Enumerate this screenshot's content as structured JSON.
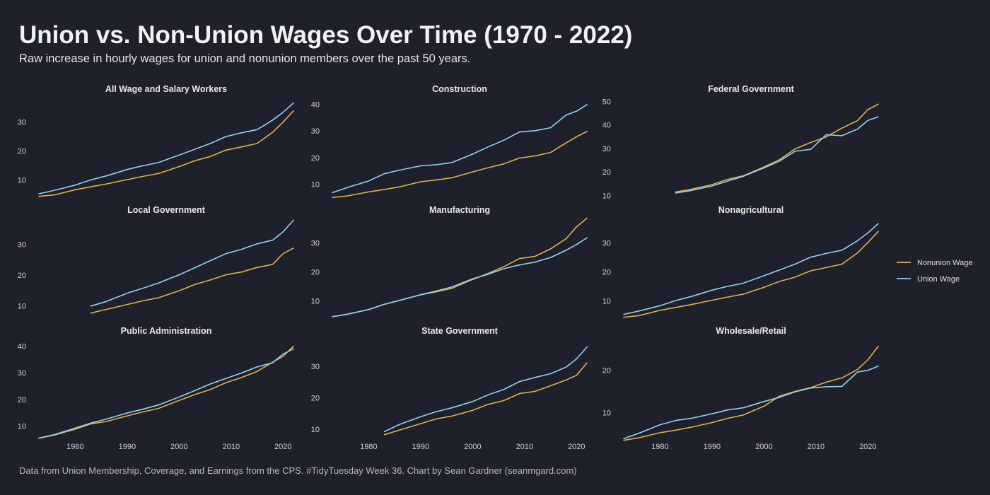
{
  "title": "Union vs. Non-Union Wages Over Time (1970 - 2022)",
  "subtitle": "Raw increase in hourly wages for union and nonunion members over the past 50 years.",
  "caption": "Data from Union Membership, Coverage, and Earnings from the CPS. #TidyTuesday Week 36. Chart by Sean Gardner (seanmgard.com)",
  "colors": {
    "background": "#1e202b",
    "nonunion": "#e3b04a",
    "union": "#8fd3ee"
  },
  "legend": {
    "placement": "right",
    "items": [
      {
        "label": "Nonunion Wage",
        "color": "#e3b04a"
      },
      {
        "label": "Union Wage",
        "color": "#8fd3ee"
      }
    ]
  },
  "chart_data": {
    "type": "line",
    "facet_layout": "3x3",
    "x_range": [
      1973,
      2022
    ],
    "x_ticks": [
      1980,
      1990,
      2000,
      2010,
      2020
    ],
    "panels": [
      {
        "title": "All Wage and Salary Workers",
        "y_ticks": [
          10,
          20,
          30
        ],
        "ylim": [
          3,
          38
        ],
        "series": [
          {
            "name": "Nonunion Wage",
            "x": [
              1973,
              1976,
              1980,
              1983,
              1986,
              1990,
              1993,
              1996,
              2000,
              2003,
              2006,
              2009,
              2012,
              2015,
              2018,
              2020,
              2022
            ],
            "y": [
              4.3,
              4.8,
              6.6,
              7.6,
              8.6,
              10.1,
              11.2,
              12.2,
              14.6,
              16.6,
              18.1,
              20.3,
              21.4,
              22.6,
              26.5,
              30.0,
              33.9
            ]
          },
          {
            "name": "Union Wage",
            "x": [
              1973,
              1976,
              1980,
              1983,
              1986,
              1990,
              1993,
              1996,
              2000,
              2003,
              2006,
              2009,
              2012,
              2015,
              2018,
              2020,
              2022
            ],
            "y": [
              5.2,
              6.4,
              8.2,
              10.0,
              11.4,
              13.6,
              14.9,
              16.0,
              18.6,
              20.6,
              22.6,
              25.0,
              26.3,
              27.4,
              30.7,
              33.4,
              36.6
            ]
          }
        ]
      },
      {
        "title": "Construction",
        "y_ticks": [
          10,
          20,
          30,
          40
        ],
        "ylim": [
          4,
          42
        ],
        "series": [
          {
            "name": "Nonunion Wage",
            "x": [
              1973,
              1976,
              1980,
              1983,
              1986,
              1990,
              1993,
              1996,
              2000,
              2003,
              2006,
              2009,
              2012,
              2015,
              2018,
              2020,
              2022
            ],
            "y": [
              5.0,
              5.6,
              7.1,
              8.0,
              9.0,
              10.9,
              11.6,
              12.4,
              14.6,
              16.2,
              17.6,
              19.8,
              20.6,
              21.9,
              25.5,
              27.8,
              29.8
            ]
          },
          {
            "name": "Union Wage",
            "x": [
              1973,
              1976,
              1980,
              1983,
              1986,
              1990,
              1993,
              1996,
              2000,
              2003,
              2006,
              2009,
              2012,
              2015,
              2018,
              2020,
              2022
            ],
            "y": [
              6.8,
              8.8,
              11.2,
              13.9,
              15.3,
              16.9,
              17.3,
              18.1,
              21.3,
              24.0,
              26.5,
              29.6,
              30.1,
              31.2,
              36.0,
              37.4,
              39.9
            ]
          }
        ]
      },
      {
        "title": "Federal Government",
        "y_ticks": [
          10,
          20,
          30,
          40,
          50
        ],
        "ylim": [
          8,
          51
        ],
        "series": [
          {
            "name": "Nonunion Wage",
            "x": [
              1983,
              1986,
              1990,
              1993,
              1996,
              2000,
              2003,
              2006,
              2009,
              2012,
              2015,
              2018,
              2020,
              2022
            ],
            "y": [
              11.5,
              12.6,
              14.6,
              16.8,
              18.3,
              22.1,
              25.2,
              29.8,
              32.5,
              34.9,
              38.6,
              41.8,
              46.5,
              48.8
            ]
          },
          {
            "name": "Union Wage",
            "x": [
              1983,
              1986,
              1990,
              1993,
              1996,
              2000,
              2003,
              2006,
              2009,
              2012,
              2015,
              2018,
              2020,
              2022
            ],
            "y": [
              11.0,
              12.1,
              14.0,
              16.1,
              18.1,
              21.7,
              24.6,
              28.8,
              29.6,
              35.8,
              35.4,
              38.2,
              41.9,
              43.4
            ]
          }
        ]
      },
      {
        "title": "Local Government",
        "y_ticks": [
          10,
          20,
          30
        ],
        "ylim": [
          5,
          38
        ],
        "series": [
          {
            "name": "Nonunion Wage",
            "x": [
              1983,
              1986,
              1990,
              1993,
              1996,
              2000,
              2003,
              2006,
              2009,
              2012,
              2015,
              2018,
              2020,
              2022
            ],
            "y": [
              7.6,
              8.8,
              10.4,
              11.6,
              12.6,
              14.9,
              16.9,
              18.4,
              20.1,
              21.0,
              22.5,
              23.5,
              27.0,
              28.8
            ]
          },
          {
            "name": "Union Wage",
            "x": [
              1983,
              1986,
              1990,
              1993,
              1996,
              2000,
              2003,
              2006,
              2009,
              2012,
              2015,
              2018,
              2020,
              2022
            ],
            "y": [
              9.9,
              11.4,
              14.1,
              15.7,
              17.4,
              20.1,
              22.4,
              24.7,
              27.0,
              28.4,
              30.2,
              31.4,
              34.1,
              37.9
            ]
          }
        ]
      },
      {
        "title": "Manufacturing",
        "y_ticks": [
          10,
          20,
          30
        ],
        "ylim": [
          3,
          38
        ],
        "series": [
          {
            "name": "Nonunion Wage",
            "x": [
              1973,
              1976,
              1980,
              1983,
              1986,
              1990,
              1993,
              1996,
              2000,
              2003,
              2006,
              2009,
              2012,
              2015,
              2018,
              2020,
              2022
            ],
            "y": [
              4.5,
              5.4,
              7.0,
              8.8,
              10.2,
              12.1,
              13.1,
              14.3,
              17.4,
              19.5,
              21.8,
              24.6,
              25.4,
              28.0,
              31.5,
              35.6,
              38.6
            ]
          },
          {
            "name": "Union Wage",
            "x": [
              1973,
              1976,
              1980,
              1983,
              1986,
              1990,
              1993,
              1996,
              2000,
              2003,
              2006,
              2009,
              2012,
              2015,
              2018,
              2020,
              2022
            ],
            "y": [
              4.5,
              5.4,
              7.0,
              8.8,
              10.2,
              12.1,
              13.4,
              14.8,
              17.6,
              19.2,
              21.1,
              22.4,
              23.4,
              25.0,
              27.5,
              29.5,
              31.8
            ]
          }
        ]
      },
      {
        "title": "Nonagricultural",
        "y_ticks": [
          10,
          20,
          30
        ],
        "ylim": [
          3,
          38
        ],
        "series": [
          {
            "name": "Nonunion Wage",
            "x": [
              1973,
              1976,
              1980,
              1983,
              1986,
              1990,
              1993,
              1996,
              2000,
              2003,
              2006,
              2009,
              2012,
              2015,
              2018,
              2020,
              2022
            ],
            "y": [
              4.3,
              4.9,
              6.7,
              7.7,
              8.7,
              10.2,
              11.3,
              12.3,
              14.7,
              16.7,
              18.2,
              20.4,
              21.5,
              22.7,
              26.6,
              30.2,
              34.0
            ]
          },
          {
            "name": "Union Wage",
            "x": [
              1973,
              1976,
              1980,
              1983,
              1986,
              1990,
              1993,
              1996,
              2000,
              2003,
              2006,
              2009,
              2012,
              2015,
              2018,
              2020,
              2022
            ],
            "y": [
              5.3,
              6.5,
              8.3,
              10.1,
              11.5,
              13.7,
              15.0,
              16.1,
              18.7,
              20.7,
              22.7,
              25.1,
              26.4,
              27.5,
              30.8,
              33.5,
              36.7
            ]
          }
        ]
      },
      {
        "title": "Public Administration",
        "y_ticks": [
          10,
          20,
          30,
          40
        ],
        "ylim": [
          4,
          42
        ],
        "series": [
          {
            "name": "Nonunion Wage",
            "x": [
              1973,
              1976,
              1980,
              1983,
              1986,
              1990,
              1993,
              1996,
              2000,
              2003,
              2006,
              2009,
              2012,
              2015,
              2018,
              2020,
              2022
            ],
            "y": [
              5.4,
              6.6,
              8.8,
              10.8,
              11.7,
              13.8,
              15.3,
              16.6,
              19.6,
              21.8,
              23.7,
              26.3,
              28.2,
              30.5,
              34.0,
              36.2,
              40.0
            ]
          },
          {
            "name": "Union Wage",
            "x": [
              1973,
              1976,
              1980,
              1983,
              1986,
              1990,
              1993,
              1996,
              2000,
              2003,
              2006,
              2009,
              2012,
              2015,
              2018,
              2020,
              2022
            ],
            "y": [
              5.5,
              6.8,
              9.2,
              11.1,
              12.6,
              14.9,
              16.3,
              17.9,
              20.9,
              23.3,
              25.8,
              27.9,
              29.9,
              32.2,
              33.8,
              37.0,
              39.0
            ]
          }
        ]
      },
      {
        "title": "State Government",
        "y_ticks": [
          10,
          20,
          30
        ],
        "ylim": [
          6,
          38
        ],
        "series": [
          {
            "name": "Nonunion Wage",
            "x": [
              1983,
              1986,
              1990,
              1993,
              1996,
              2000,
              2003,
              2006,
              2009,
              2012,
              2015,
              2018,
              2020,
              2022
            ],
            "y": [
              8.3,
              9.8,
              11.8,
              13.3,
              14.2,
              16.0,
              17.9,
              19.1,
              21.3,
              22.0,
              23.8,
              25.6,
              27.1,
              31.0
            ]
          },
          {
            "name": "Union Wage",
            "x": [
              1983,
              1986,
              1990,
              1993,
              1996,
              2000,
              2003,
              2006,
              2009,
              2012,
              2015,
              2018,
              2020,
              2022
            ],
            "y": [
              9.3,
              11.6,
              14.0,
              15.6,
              16.8,
              18.8,
              20.9,
              22.6,
              25.1,
              26.4,
              27.6,
              29.7,
              32.3,
              36.0
            ]
          }
        ]
      },
      {
        "title": "Wholesale/Retail",
        "y_ticks": [
          10,
          20
        ],
        "ylim": [
          3,
          27
        ],
        "series": [
          {
            "name": "Nonunion Wage",
            "x": [
              1973,
              1976,
              1980,
              1983,
              1986,
              1990,
              1993,
              1996,
              2000,
              2003,
              2006,
              2009,
              2012,
              2015,
              2018,
              2020,
              2022
            ],
            "y": [
              3.4,
              4.0,
              5.2,
              5.8,
              6.5,
              7.6,
              8.6,
              9.4,
              11.5,
              13.9,
              15.0,
              15.9,
              17.2,
              18.2,
              20.2,
              22.5,
              25.7
            ]
          },
          {
            "name": "Union Wage",
            "x": [
              1973,
              1976,
              1980,
              1983,
              1986,
              1990,
              1993,
              1996,
              2000,
              2003,
              2006,
              2009,
              2012,
              2015,
              2018,
              2020,
              2022
            ],
            "y": [
              3.8,
              5.1,
              7.1,
              8.1,
              8.6,
              9.7,
              10.6,
              11.1,
              12.6,
              13.6,
              14.9,
              15.8,
              16.1,
              16.2,
              19.6,
              20.0,
              21.0
            ]
          }
        ]
      }
    ]
  }
}
